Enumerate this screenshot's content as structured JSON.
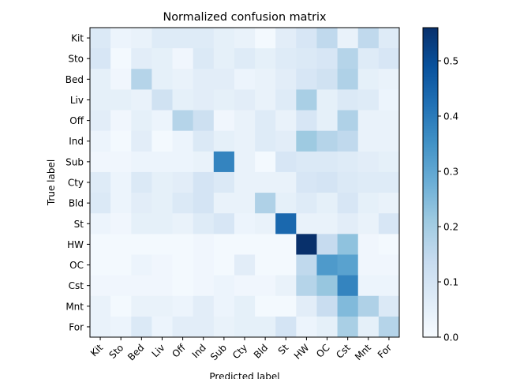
{
  "chart_data": {
    "type": "heatmap",
    "title": "Normalized confusion matrix",
    "xlabel": "Predicted label",
    "ylabel": "True label",
    "labels": [
      "Kit",
      "Sto",
      "Bed",
      "Liv",
      "Off",
      "Ind",
      "Sub",
      "Cty",
      "Bld",
      "St",
      "HW",
      "OC",
      "Cst",
      "Mnt",
      "For"
    ],
    "colormap": "Blues",
    "vmin": 0,
    "vmax": 0.56,
    "colorbar_ticks": [
      0,
      0.1,
      0.2,
      0.3,
      0.4,
      0.5
    ],
    "colorbar_tick_labels": [
      "0.0",
      "0.1",
      "0.2",
      "0.3",
      "0.4",
      "0.5"
    ],
    "matrix": [
      [
        0.08,
        0.03,
        0.04,
        0.07,
        0.07,
        0.07,
        0.05,
        0.04,
        0.01,
        0.06,
        0.09,
        0.15,
        0.04,
        0.15,
        0.07
      ],
      [
        0.09,
        0.01,
        0.06,
        0.05,
        0.02,
        0.08,
        0.05,
        0.07,
        0.05,
        0.07,
        0.08,
        0.09,
        0.17,
        0.07,
        0.09
      ],
      [
        0.05,
        0.02,
        0.17,
        0.05,
        0.04,
        0.06,
        0.06,
        0.03,
        0.04,
        0.06,
        0.09,
        0.11,
        0.18,
        0.05,
        0.04
      ],
      [
        0.05,
        0.05,
        0.04,
        0.11,
        0.05,
        0.06,
        0.05,
        0.06,
        0.04,
        0.07,
        0.19,
        0.05,
        0.08,
        0.07,
        0.03
      ],
      [
        0.06,
        0.02,
        0.05,
        0.03,
        0.17,
        0.12,
        0.02,
        0.04,
        0.07,
        0.04,
        0.09,
        0.05,
        0.18,
        0.04,
        0.04
      ],
      [
        0.03,
        0.01,
        0.06,
        0.01,
        0.03,
        0.08,
        0.05,
        0.04,
        0.07,
        0.06,
        0.21,
        0.17,
        0.15,
        0.04,
        0.04
      ],
      [
        0.02,
        0.02,
        0.03,
        0.03,
        0.03,
        0.04,
        0.38,
        0.04,
        0.01,
        0.09,
        0.08,
        0.08,
        0.07,
        0.06,
        0.05
      ],
      [
        0.07,
        0.03,
        0.08,
        0.05,
        0.06,
        0.1,
        0.08,
        0.04,
        0.04,
        0.04,
        0.09,
        0.1,
        0.08,
        0.07,
        0.07
      ],
      [
        0.08,
        0.03,
        0.06,
        0.05,
        0.08,
        0.1,
        0.04,
        0.04,
        0.18,
        0.05,
        0.07,
        0.05,
        0.09,
        0.05,
        0.04
      ],
      [
        0.03,
        0.02,
        0.05,
        0.05,
        0.04,
        0.07,
        0.09,
        0.03,
        0.04,
        0.44,
        0.04,
        0.04,
        0.06,
        0.04,
        0.09
      ],
      [
        0.01,
        0.01,
        0.01,
        0.01,
        0.01,
        0.02,
        0.01,
        0.01,
        0.01,
        0.01,
        0.56,
        0.14,
        0.23,
        0.02,
        0.01
      ],
      [
        0.01,
        0.01,
        0.03,
        0.02,
        0.01,
        0.02,
        0.01,
        0.06,
        0.01,
        0.01,
        0.15,
        0.33,
        0.31,
        0.02,
        0.02
      ],
      [
        0.02,
        0.02,
        0.02,
        0.02,
        0.01,
        0.02,
        0.03,
        0.02,
        0.02,
        0.04,
        0.17,
        0.22,
        0.38,
        0.03,
        0.03
      ],
      [
        0.04,
        0.01,
        0.04,
        0.04,
        0.03,
        0.06,
        0.03,
        0.05,
        0.01,
        0.01,
        0.06,
        0.13,
        0.25,
        0.18,
        0.08
      ],
      [
        0.04,
        0.03,
        0.08,
        0.03,
        0.06,
        0.06,
        0.04,
        0.05,
        0.05,
        0.1,
        0.03,
        0.05,
        0.19,
        0.05,
        0.17
      ]
    ]
  }
}
